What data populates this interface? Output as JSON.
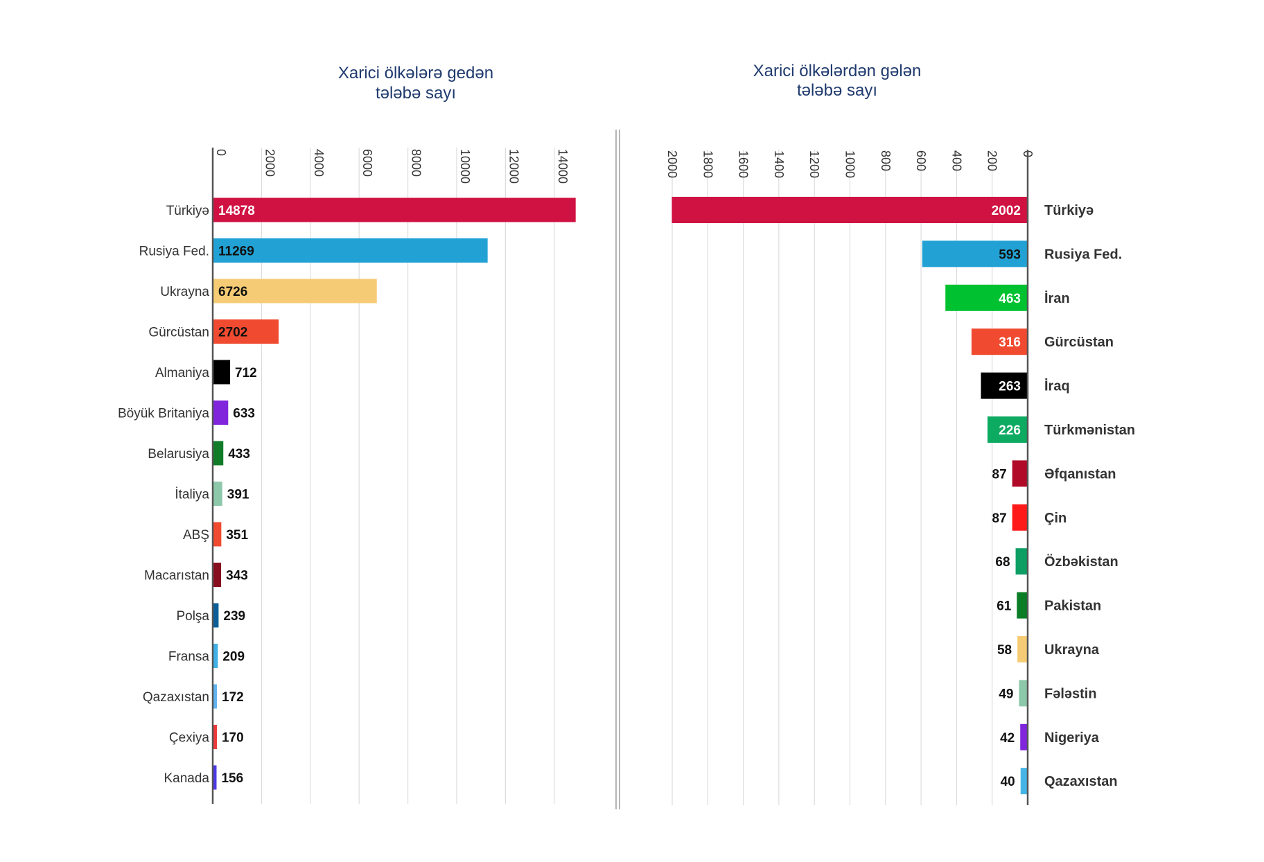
{
  "chart_data": [
    {
      "type": "bar",
      "orientation": "horizontal",
      "title_lines": [
        "Xarici ölkələrə gedən",
        "tələbə sayı"
      ],
      "ticks": [
        0,
        2000,
        4000,
        6000,
        8000,
        10000,
        12000,
        14000
      ],
      "xlim": [
        0,
        16000
      ],
      "grid": true,
      "categories": [
        "Türkiyə",
        "Rusiya Fed.",
        "Ukrayna",
        "Gürcüstan",
        "Almaniya",
        "Böyük Britaniya",
        "Belarusiya",
        "İtaliya",
        "ABŞ",
        "Macarıstan",
        "Polşa",
        "Fransa",
        "Qazaxıstan",
        "Çexiya",
        "Kanada"
      ],
      "values": [
        14878,
        11269,
        6726,
        2702,
        712,
        633,
        433,
        391,
        351,
        343,
        239,
        209,
        172,
        170,
        156
      ],
      "colors": [
        "#d01242",
        "#22a2d4",
        "#f5cc75",
        "#f04a30",
        "#000000",
        "#8025dc",
        "#107c28",
        "#8ec8ab",
        "#f04a30",
        "#860e1e",
        "#0b5e98",
        "#3fb1e6",
        "#61b4f0",
        "#ed3a3a",
        "#4d39e8"
      ]
    },
    {
      "type": "bar",
      "orientation": "horizontal",
      "direction": "right-to-left",
      "title_lines": [
        "Xarici ölkələrdən gələn",
        "tələbə sayı"
      ],
      "ticks": [
        0,
        200,
        400,
        600,
        800,
        1000,
        1200,
        1400,
        1600,
        1800,
        2000
      ],
      "xlim": [
        0,
        2200
      ],
      "grid": true,
      "categories": [
        "Türkiyə",
        "Rusiya Fed.",
        "İran",
        "Gürcüstan",
        "İraq",
        "Türkmənistan",
        "Əfqanıstan",
        "Çin",
        "Özbəkistan",
        "Pakistan",
        "Ukrayna",
        "Fələstin",
        "Nigeriya",
        "Qazaxıstan"
      ],
      "values": [
        2002,
        593,
        463,
        316,
        263,
        226,
        87,
        87,
        68,
        61,
        58,
        49,
        42,
        40
      ],
      "colors": [
        "#d01242",
        "#22a2d4",
        "#00c230",
        "#f04a30",
        "#000000",
        "#0daa62",
        "#b00a28",
        "#ff1a1a",
        "#0d9e64",
        "#0a7d26",
        "#f5cc75",
        "#8ec8ab",
        "#8025dc",
        "#45b4e6"
      ]
    }
  ]
}
